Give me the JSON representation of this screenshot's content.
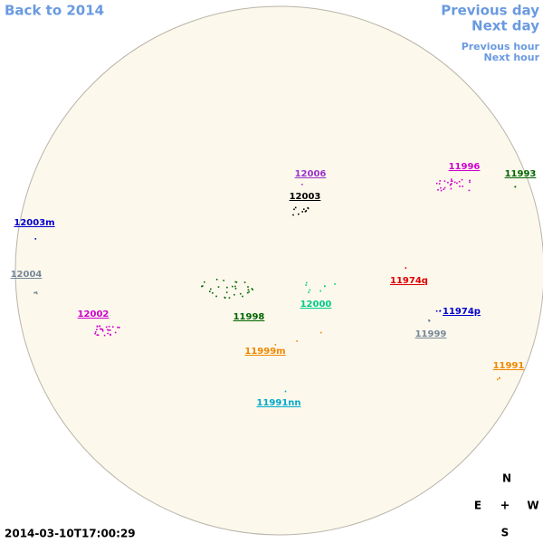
{
  "nav": {
    "back": "Back to 2014",
    "previous_day": "Previous day",
    "next_day": "Next day",
    "previous_hour": "Previous hour",
    "next_hour": "Next hour"
  },
  "timestamp": "2014-03-10T17:00:29",
  "compass": {
    "north": "N",
    "east": "E",
    "center": "+",
    "west": "W",
    "south": "S"
  },
  "regions": [
    {
      "label": "12006",
      "color": "#9933cc"
    },
    {
      "label": "12003",
      "color": "#000000"
    },
    {
      "label": "11996",
      "color": "#cc00cc"
    },
    {
      "label": "11993",
      "color": "#006600"
    },
    {
      "label": "12003m",
      "color": "#0000cc"
    },
    {
      "label": "12004",
      "color": "#778899"
    },
    {
      "label": "11974q",
      "color": "#dd0000"
    },
    {
      "label": "12000",
      "color": "#00cc88"
    },
    {
      "label": "11974p",
      "color": "#0000cc"
    },
    {
      "label": "12002",
      "color": "#cc00cc"
    },
    {
      "label": "11998",
      "color": "#006600"
    },
    {
      "label": "11999",
      "color": "#778899"
    },
    {
      "label": "11999m",
      "color": "#ee8800"
    },
    {
      "label": "11991",
      "color": "#ee8800"
    },
    {
      "label": "11991nn",
      "color": "#00aacc"
    }
  ]
}
